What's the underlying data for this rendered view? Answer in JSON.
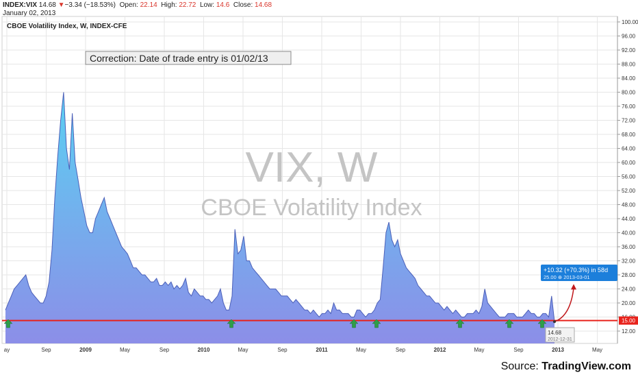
{
  "header": {
    "symbol": "INDEX:VIX",
    "last": "14.68",
    "change_arrow": "▼",
    "change": "−3.34 (−18.53%)",
    "open_label": "Open:",
    "open": "22.14",
    "high_label": "High:",
    "high": "22.72",
    "low_label": "Low:",
    "low": "14.6",
    "close_label": "Close:",
    "close": "14.68",
    "date": "January 02, 2013"
  },
  "source": {
    "prefix": "Source: ",
    "brand": "TradingView.com"
  },
  "colors": {
    "area_top": "#5bd0f2",
    "area_bottom": "#8c8ee8",
    "line": "#4b5fb8",
    "support": "#e8221b",
    "arrow": "#2f9e48",
    "target": "#1c7fdb",
    "grid": "#e6e6e6"
  },
  "chart_data": {
    "type": "area",
    "title": "CBOE Volatility Index, W, INDEX-CFE",
    "watermark_symbol": "VIX, W",
    "watermark_name": "CBOE Volatility Index",
    "annotation": "Correction: Date of trade entry is 01/02/13",
    "ylim": [
      10,
      100
    ],
    "y_ticks": [
      "100.00",
      "96.00",
      "92.00",
      "88.00",
      "84.00",
      "80.00",
      "76.00",
      "72.00",
      "68.00",
      "64.00",
      "60.00",
      "56.00",
      "52.00",
      "48.00",
      "44.00",
      "40.00",
      "36.00",
      "32.00",
      "28.00",
      "24.00",
      "20.00",
      "16.00",
      "12.00"
    ],
    "x_ticks": [
      "ay",
      "Sep",
      "2009",
      "May",
      "Sep",
      "2010",
      "May",
      "Sep",
      "2011",
      "May",
      "Sep",
      "2012",
      "May",
      "Sep",
      "2013",
      "May"
    ],
    "grid": true,
    "support_level": {
      "value": 15.0,
      "label": "15.00"
    },
    "last_point": {
      "value": 14.68,
      "label": "14.68",
      "date": "2012-12-31"
    },
    "projection": {
      "label": "+10.32 (+70.3%) in 58d",
      "target": "25.00",
      "target_date": "2013-03-01",
      "target_value": 25.0
    },
    "buy_signals": 10,
    "series": [
      {
        "values": [
          18,
          20,
          22,
          24,
          25,
          26,
          27,
          28,
          25,
          23,
          22,
          21,
          20,
          20,
          22,
          26,
          35,
          50,
          62,
          72,
          80,
          64,
          58,
          74,
          60,
          55,
          50,
          46,
          42,
          40,
          40,
          44,
          46,
          48,
          50,
          46,
          44,
          42,
          40,
          38,
          36,
          35,
          34,
          32,
          30,
          30,
          29,
          28,
          28,
          27,
          26,
          26,
          27,
          25,
          25,
          26,
          25,
          26,
          24,
          25,
          24,
          25,
          27,
          23,
          22,
          24,
          23,
          22,
          22,
          21,
          21,
          20,
          21,
          22,
          24,
          20,
          18,
          18,
          22,
          41,
          34,
          35,
          39,
          32,
          32,
          30,
          29,
          28,
          27,
          26,
          25,
          24,
          24,
          24,
          23,
          22,
          22,
          22,
          21,
          20,
          21,
          20,
          19,
          18,
          18,
          17,
          18,
          17,
          16,
          17,
          17,
          18,
          17,
          20,
          18,
          18,
          17,
          17,
          17,
          16,
          16,
          18,
          18,
          17,
          16,
          17,
          17,
          18,
          20,
          21,
          30,
          40,
          43,
          38,
          36,
          38,
          34,
          32,
          30,
          29,
          28,
          27,
          25,
          24,
          23,
          22,
          22,
          21,
          20,
          20,
          19,
          18,
          19,
          18,
          17,
          18,
          17,
          16,
          16,
          17,
          17,
          17,
          18,
          17,
          19,
          24,
          20,
          19,
          18,
          17,
          16,
          16,
          16,
          17,
          17,
          17,
          16,
          16,
          16,
          17,
          18,
          17,
          17,
          16,
          16,
          17,
          17,
          16,
          22,
          14.68
        ]
      }
    ]
  }
}
